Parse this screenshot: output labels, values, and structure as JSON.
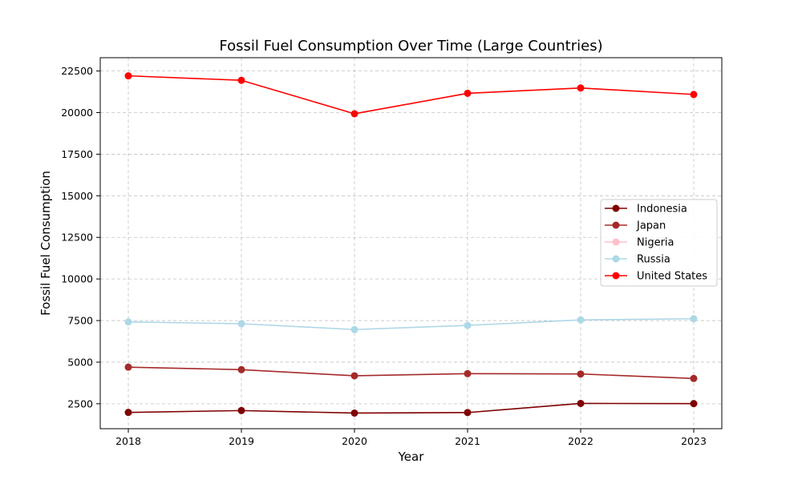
{
  "chart_data": {
    "type": "line",
    "title": "Fossil Fuel Consumption Over Time (Large Countries)",
    "xlabel": "Year",
    "ylabel": "Fossil Fuel Consumption",
    "x": [
      2018,
      2019,
      2020,
      2021,
      2022,
      2023
    ],
    "ylim": [
      1000,
      23300
    ],
    "yticks": [
      2500,
      5000,
      7500,
      10000,
      12500,
      15000,
      17500,
      20000,
      22500
    ],
    "grid": true,
    "legend_position": "center-right",
    "series": [
      {
        "name": "Indonesia",
        "color": "#800000",
        "values": [
          1980,
          2090,
          1940,
          1970,
          2520,
          2510
        ]
      },
      {
        "name": "Japan",
        "color": "#a52a2a",
        "values": [
          4700,
          4550,
          4180,
          4310,
          4290,
          4020
        ]
      },
      {
        "name": "Nigeria",
        "color": "#ffc0cb",
        "values": [
          null,
          null,
          null,
          null,
          null,
          null
        ]
      },
      {
        "name": "Russia",
        "color": "#add8e6",
        "values": [
          7420,
          7310,
          6960,
          7210,
          7540,
          7610
        ]
      },
      {
        "name": "United States",
        "color": "#ff0000",
        "values": [
          22210,
          21940,
          19930,
          21160,
          21480,
          21090
        ]
      }
    ]
  }
}
